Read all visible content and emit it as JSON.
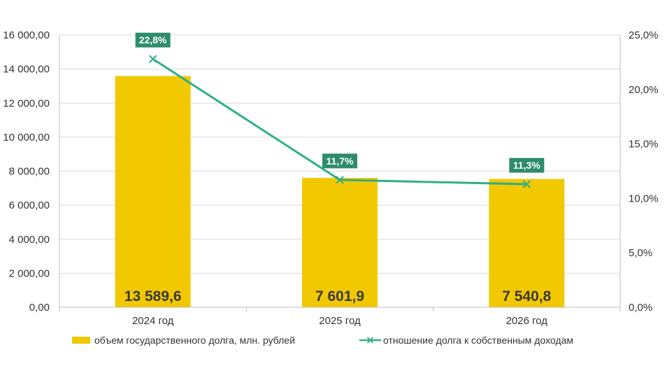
{
  "chart_data": {
    "type": "bar",
    "categories": [
      "2024 год",
      "2025 год",
      "2026 год"
    ],
    "series": [
      {
        "name": "объем государственного долга, млн. рублей",
        "type": "bar",
        "axis": "left",
        "values": [
          13589.6,
          7601.9,
          7540.8
        ],
        "labels": [
          "13 589,6",
          "7 601,9",
          "7 540,8"
        ],
        "color": "#F2C800"
      },
      {
        "name": "отношение долга к собственным доходам",
        "type": "line",
        "axis": "right",
        "values": [
          22.8,
          11.7,
          11.3
        ],
        "labels": [
          "22,8%",
          "11,7%",
          "11,3%"
        ],
        "color": "#2FAE8A",
        "label_bg": "#2E8C6C"
      }
    ],
    "y_left": {
      "lim": [
        0,
        16000
      ],
      "ticks": [
        "0,00",
        "2 000,00",
        "4 000,00",
        "6 000,00",
        "8 000,00",
        "10 000,00",
        "12 000,00",
        "14 000,00",
        "16 000,00"
      ]
    },
    "y_right": {
      "lim": [
        0,
        25
      ],
      "ticks": [
        "0,0%",
        "5,0%",
        "10,0%",
        "15,0%",
        "20,0%",
        "25,0%"
      ]
    },
    "grid": true,
    "legend_position": "bottom",
    "title": "",
    "xlabel": "",
    "ylabel": ""
  }
}
